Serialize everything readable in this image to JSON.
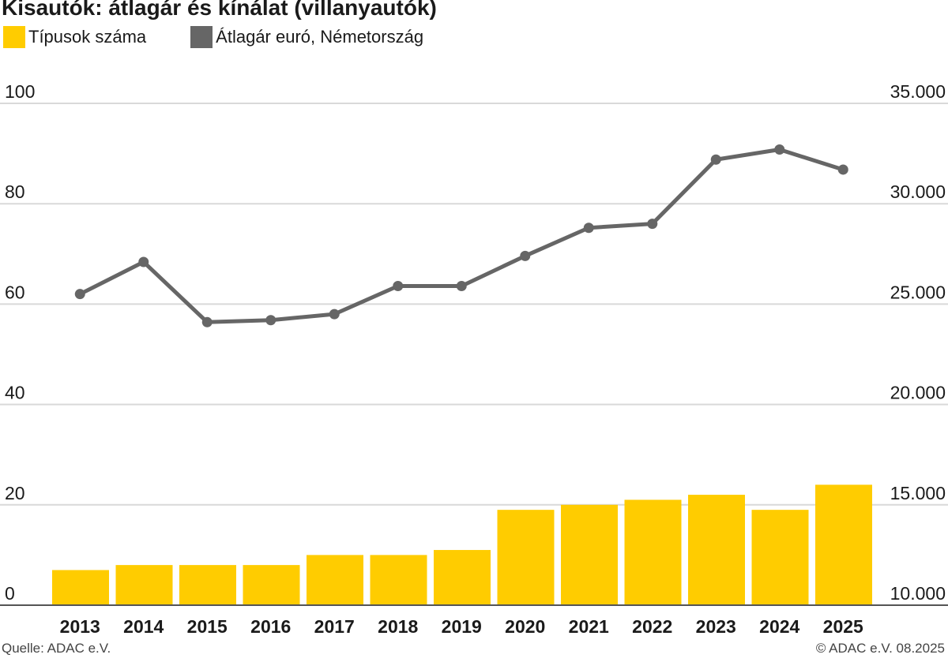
{
  "title": "Kisautók: átlagár és kínálat (villanyautók)",
  "legend": [
    {
      "label": "Típusok száma",
      "color": "#ffcc00"
    },
    {
      "label": "Átlagár euró, Németország",
      "color": "#666666"
    }
  ],
  "source": "Quelle: ADAC e.V.",
  "copyright": "© ADAC e.V. 08.2025",
  "chart_data": {
    "type": "bar+line",
    "categories": [
      "2013",
      "2014",
      "2015",
      "2016",
      "2017",
      "2018",
      "2019",
      "2020",
      "2021",
      "2022",
      "2023",
      "2024",
      "2025"
    ],
    "series": [
      {
        "name": "Típusok száma",
        "type": "bar",
        "axis": "left",
        "color": "#ffcc00",
        "values": [
          7,
          8,
          8,
          8,
          10,
          10,
          11,
          19,
          20,
          21,
          22,
          19,
          24
        ]
      },
      {
        "name": "Átlagár euró, Németország",
        "type": "line",
        "axis": "right",
        "color": "#666666",
        "values": [
          25500,
          27100,
          24100,
          24200,
          24500,
          25900,
          25900,
          27400,
          28800,
          29000,
          32200,
          32700,
          31700
        ]
      }
    ],
    "y_left": {
      "ticks": [
        "0",
        "20",
        "40",
        "60",
        "80",
        "100"
      ],
      "range": [
        0,
        100
      ]
    },
    "y_right": {
      "ticks": [
        "10.000",
        "15.000",
        "20.000",
        "25.000",
        "30.000",
        "35.000"
      ],
      "range": [
        10000,
        35000
      ]
    },
    "grid": true
  }
}
